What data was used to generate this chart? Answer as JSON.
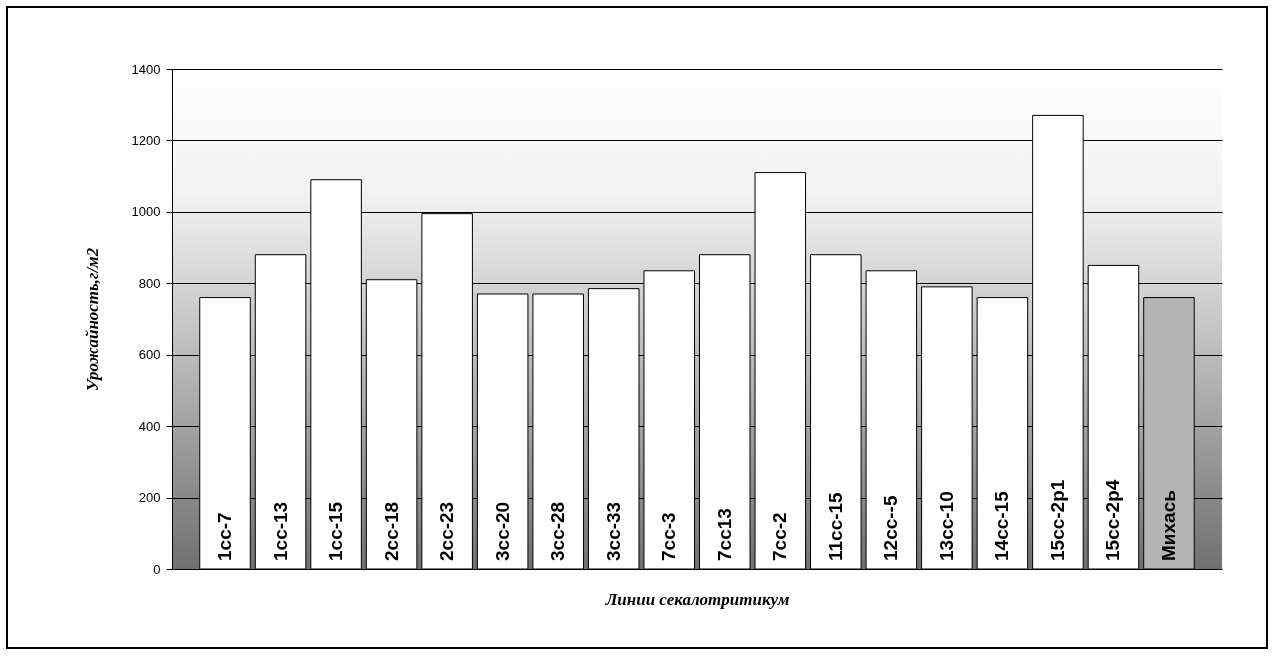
{
  "chart_data": {
    "type": "bar",
    "xlabel": "Линии секалотритикум",
    "ylabel": "Урожайность,г/м2",
    "categories": [
      "1cc-7",
      "1cc-13",
      "1cc-15",
      "2cc-18",
      "2cc-23",
      "3cc-20",
      "3cc-28",
      "3cc-33",
      "7cc-3",
      "7cc13",
      "7cc-2",
      "11cc-15",
      "12cc--5",
      "13cc-10",
      "14cc-15",
      "15cc-2p1",
      "15cc-2p4",
      "Михась"
    ],
    "values": [
      760,
      880,
      1090,
      810,
      995,
      770,
      770,
      785,
      835,
      880,
      1110,
      880,
      835,
      790,
      760,
      1270,
      850,
      760
    ],
    "colors": [
      "#ffffff",
      "#ffffff",
      "#ffffff",
      "#ffffff",
      "#ffffff",
      "#ffffff",
      "#ffffff",
      "#ffffff",
      "#ffffff",
      "#ffffff",
      "#ffffff",
      "#ffffff",
      "#ffffff",
      "#ffffff",
      "#ffffff",
      "#ffffff",
      "#ffffff",
      "#b4b4b4"
    ],
    "ylim": [
      0,
      1400
    ],
    "yticks": [
      0,
      200,
      400,
      600,
      800,
      1000,
      1200,
      1400
    ],
    "grid": "y"
  }
}
